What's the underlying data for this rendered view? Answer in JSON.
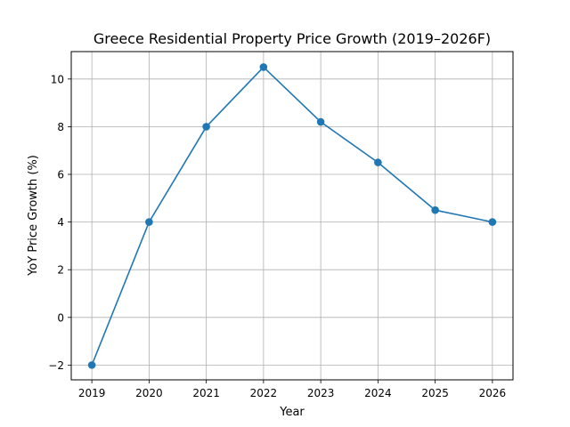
{
  "chart_data": {
    "type": "line",
    "title": "Greece Residential Property Price Growth (2019–2026F)",
    "xlabel": "Year",
    "ylabel": "YoY Price Growth (%)",
    "categories": [
      "2019",
      "2020",
      "2021",
      "2022",
      "2023",
      "2024",
      "2025",
      "2026"
    ],
    "x": [
      2019,
      2020,
      2021,
      2022,
      2023,
      2024,
      2025,
      2026
    ],
    "series": [
      {
        "name": "YoY Price Growth (%)",
        "values": [
          -2.0,
          4.0,
          8.0,
          10.5,
          8.2,
          6.5,
          4.5,
          4.0
        ],
        "color": "#1f77b4",
        "marker": "circle"
      }
    ],
    "xlim": [
      2018.64,
      2026.36
    ],
    "ylim": [
      -2.62,
      11.15
    ],
    "yticks": [
      -2,
      0,
      2,
      4,
      6,
      8,
      10
    ],
    "ytick_labels": [
      "−2",
      "0",
      "2",
      "4",
      "6",
      "8",
      "10"
    ],
    "xticks": [
      2019,
      2020,
      2021,
      2022,
      2023,
      2024,
      2025,
      2026
    ],
    "xtick_labels": [
      "2019",
      "2020",
      "2021",
      "2022",
      "2023",
      "2024",
      "2025",
      "2026"
    ],
    "grid": true,
    "legend": null
  }
}
